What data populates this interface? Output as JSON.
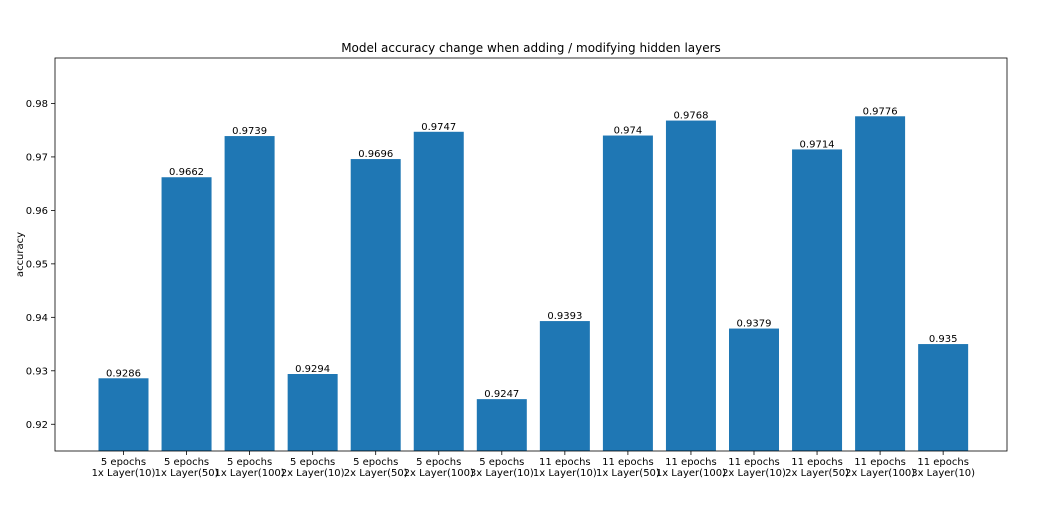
{
  "chart_data": {
    "type": "bar",
    "title": "Model accuracy change when adding / modifying hidden layers",
    "xlabel": "",
    "ylabel": "accuracy",
    "ylim": [
      0.915,
      0.9885
    ],
    "yticks": [
      0.92,
      0.93,
      0.94,
      0.95,
      0.96,
      0.97,
      0.98
    ],
    "ytick_labels": [
      "0.92",
      "0.93",
      "0.94",
      "0.95",
      "0.96",
      "0.97",
      "0.98"
    ],
    "grid": false,
    "bar_color": "#1f77b4",
    "categories": [
      [
        "5 epochs",
        "1x Layer(10)"
      ],
      [
        "5 epochs",
        "1x Layer(50)"
      ],
      [
        "5 epochs",
        "1x Layer(100)"
      ],
      [
        "5 epochs",
        "2x Layer(10)"
      ],
      [
        "5 epochs",
        "2x Layer(50)"
      ],
      [
        "5 epochs",
        "2x Layer(100)"
      ],
      [
        "5 epochs",
        "3x Layer(10)"
      ],
      [
        "11 epochs",
        "1x Layer(10)"
      ],
      [
        "11 epochs",
        "1x Layer(50)"
      ],
      [
        "11 epochs",
        "1x Layer(100)"
      ],
      [
        "11 epochs",
        "2x Layer(10)"
      ],
      [
        "11 epochs",
        "2x Layer(50)"
      ],
      [
        "11 epochs",
        "2x Layer(100)"
      ],
      [
        "11 epochs",
        "3x Layer(10)"
      ]
    ],
    "values": [
      0.9286,
      0.9662,
      0.9739,
      0.9294,
      0.9696,
      0.9747,
      0.9247,
      0.9393,
      0.974,
      0.9768,
      0.9379,
      0.9714,
      0.9776,
      0.935
    ],
    "value_labels": [
      "0.9286",
      "0.9662",
      "0.9739",
      "0.9294",
      "0.9696",
      "0.9747",
      "0.9247",
      "0.9393",
      "0.974",
      "0.9768",
      "0.9379",
      "0.9714",
      "0.9776",
      "0.935"
    ]
  }
}
